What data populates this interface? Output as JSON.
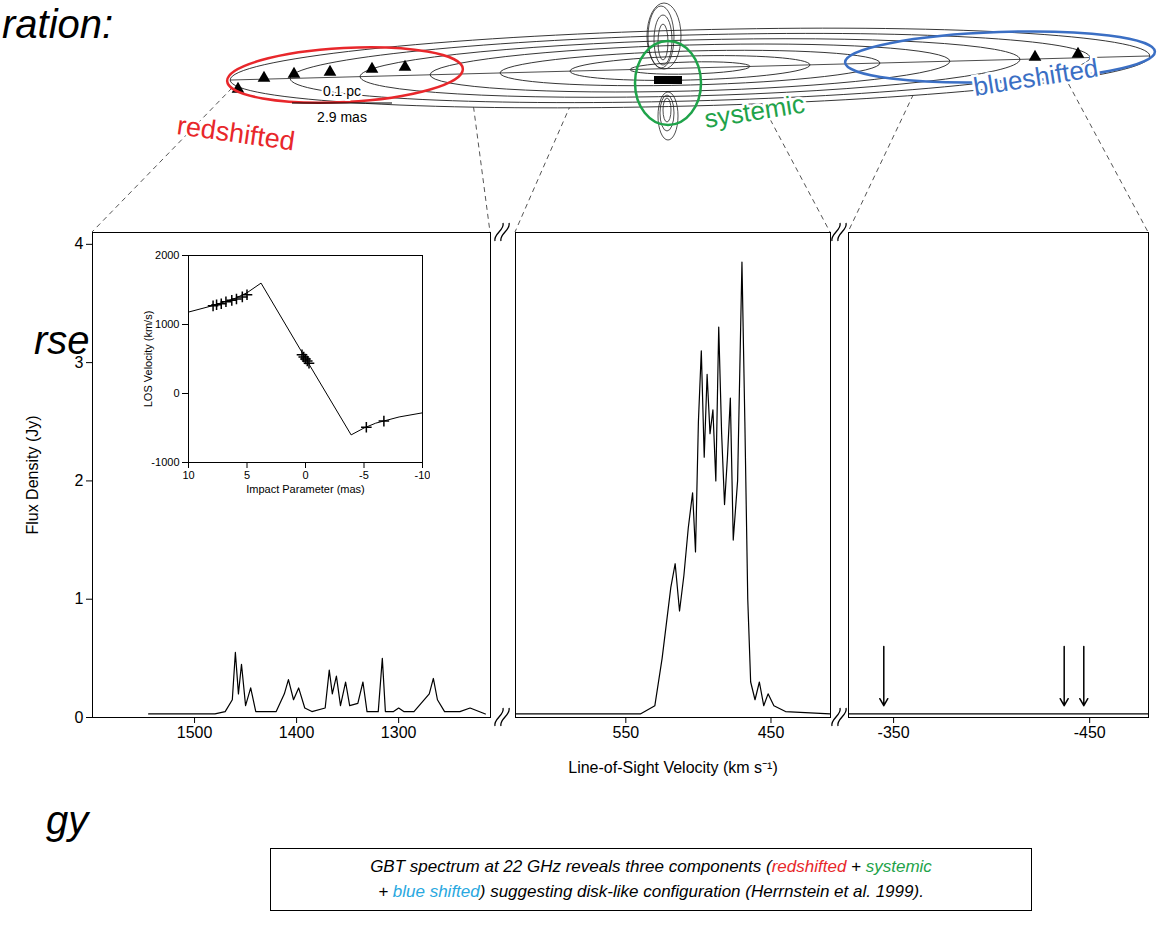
{
  "slide_text": [
    "ration:",
    "rse",
    "gy"
  ],
  "diagram": {
    "labels": [
      {
        "text": "redshifted",
        "color": "#e8272b"
      },
      {
        "text": "systemic",
        "color": "#1fa34a"
      },
      {
        "text": "blueshifted",
        "color": "#3b6fc4"
      }
    ],
    "scale_bar": [
      "0.1 pc",
      "2.9 mas"
    ]
  },
  "chart_data": [
    {
      "type": "line",
      "color": "#000000",
      "ylabel": "Flux Density (Jy)",
      "xlim": [
        1600,
        1210
      ],
      "xticks": [
        1500,
        1400,
        1300
      ],
      "ylim": [
        0,
        4.1
      ],
      "yticks": [
        0,
        1,
        2,
        3,
        4
      ],
      "x": [
        1545,
        1480,
        1470,
        1463,
        1460,
        1457,
        1454,
        1450,
        1445,
        1440,
        1420,
        1412,
        1408,
        1403,
        1398,
        1392,
        1385,
        1372,
        1368,
        1365,
        1361,
        1357,
        1352,
        1348,
        1340,
        1335,
        1331,
        1320,
        1316,
        1313,
        1305,
        1300,
        1295,
        1285,
        1270,
        1266,
        1262,
        1255,
        1240,
        1230,
        1215
      ],
      "values": [
        0.03,
        0.03,
        0.05,
        0.15,
        0.55,
        0.2,
        0.45,
        0.1,
        0.25,
        0.05,
        0.05,
        0.2,
        0.32,
        0.15,
        0.25,
        0.08,
        0.05,
        0.08,
        0.4,
        0.2,
        0.35,
        0.1,
        0.3,
        0.1,
        0.12,
        0.3,
        0.05,
        0.05,
        0.5,
        0.05,
        0.05,
        0.08,
        0.05,
        0.05,
        0.2,
        0.33,
        0.15,
        0.05,
        0.05,
        0.08,
        0.03
      ]
    },
    {
      "type": "line",
      "color": "#000000",
      "xlabel": "Line-of-Sight Velocity (km s⁻¹)",
      "tick_labels": "x",
      "xlim": [
        626,
        409
      ],
      "xticks": [
        550,
        450
      ],
      "ylim": [
        0,
        4.1
      ],
      "x": [
        626,
        540,
        530,
        525,
        522,
        519,
        516,
        513,
        510,
        507,
        504,
        502,
        500,
        498,
        496,
        494,
        492,
        490,
        488,
        486,
        484,
        482,
        480,
        478,
        476,
        473,
        470,
        468,
        466,
        464,
        461,
        458,
        455,
        452,
        448,
        440,
        409
      ],
      "values": [
        0.03,
        0.03,
        0.1,
        0.5,
        0.8,
        1.1,
        1.3,
        0.9,
        1.2,
        1.6,
        1.9,
        1.4,
        2.5,
        3.1,
        2.2,
        2.9,
        2.4,
        2.6,
        2.0,
        3.3,
        2.4,
        1.8,
        2.2,
        2.7,
        1.5,
        2.0,
        3.85,
        2.5,
        1.0,
        0.3,
        0.15,
        0.3,
        0.1,
        0.2,
        0.1,
        0.05,
        0.03
      ]
    },
    {
      "type": "line",
      "color": "#000000",
      "tick_labels": "x",
      "xlim": [
        -327,
        -480
      ],
      "xticks": [
        -350,
        -450
      ],
      "ylim": [
        0,
        4.1
      ],
      "x": [
        -327,
        -480
      ],
      "values": [
        0.03,
        0.03
      ],
      "arrows": [
        -345,
        -437,
        -447
      ]
    },
    {
      "type": "line",
      "color": "#000000",
      "xlabel": "Impact Parameter (mas)",
      "ylabel": "LOS Velocity (km/s)",
      "xlim": [
        10,
        -10
      ],
      "xticks": [
        10,
        5,
        0,
        -5,
        -10
      ],
      "ylim": [
        -1000,
        2000
      ],
      "yticks": [
        -1000,
        0,
        1000,
        2000
      ],
      "x": [
        10,
        8,
        6,
        5,
        3.8,
        0,
        -3.9,
        -5,
        -6,
        -8,
        -10
      ],
      "values": [
        1180,
        1270,
        1380,
        1460,
        1600,
        510,
        -600,
        -500,
        -430,
        -340,
        -280
      ],
      "points": {
        "marker": "plus",
        "x": [
          7.9,
          7.6,
          7.2,
          6.8,
          6.3,
          5.9,
          5.4,
          5.0,
          0.3,
          0.15,
          0,
          -0.15,
          -0.3,
          -5.2,
          -6.7
        ],
        "values": [
          1270,
          1285,
          1300,
          1330,
          1350,
          1370,
          1400,
          1430,
          560,
          530,
          500,
          470,
          440,
          -490,
          -400
        ]
      }
    }
  ],
  "caption": [
    [
      {
        "text": "GBT spectrum at 22 GHz reveals three components (",
        "color": "#000000"
      },
      {
        "text": "redshifted",
        "color": "#e8272b"
      },
      {
        "text": " + ",
        "color": "#000000"
      },
      {
        "text": "systemic",
        "color": "#1fa34a"
      }
    ],
    [
      {
        "text": "+ ",
        "color": "#000000"
      },
      {
        "text": "blue shifted",
        "color": "#29a8e0"
      },
      {
        "text": ") suggesting disk-like configuration (Herrnstein et al. 1999).",
        "color": "#000000"
      }
    ]
  ]
}
